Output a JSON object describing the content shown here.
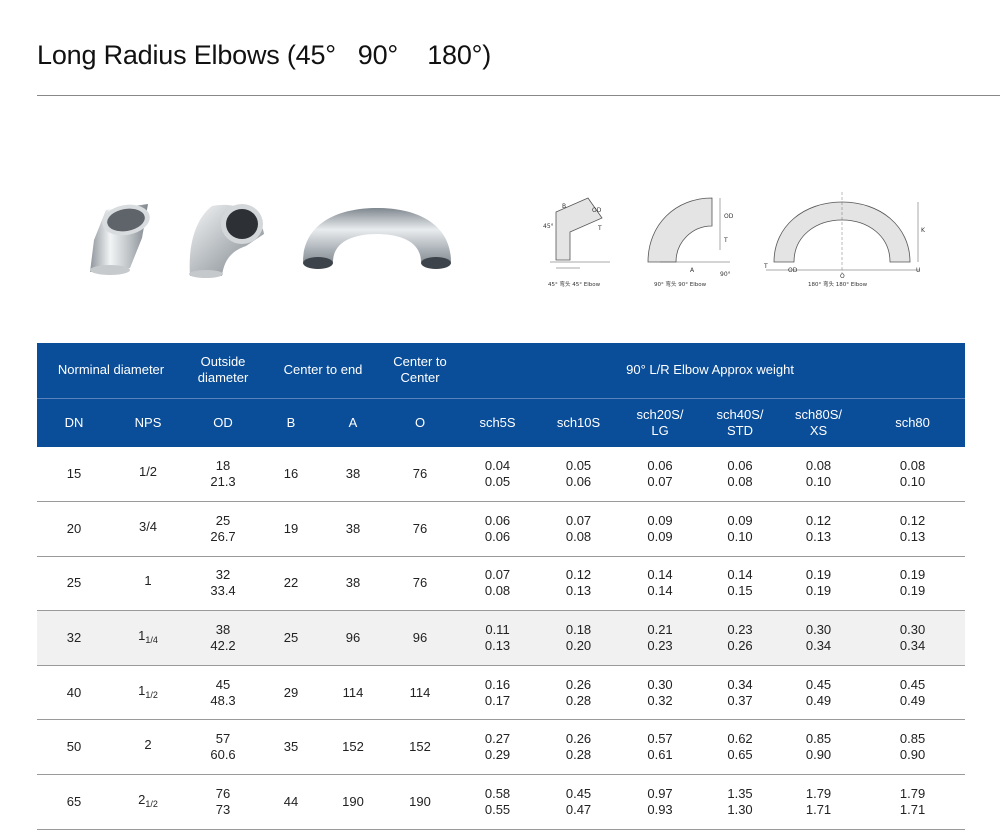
{
  "page": {
    "title": "Long Radius Elbows (45°   90°    180°)"
  },
  "images": {
    "photos": [
      "elbow-45-photo",
      "elbow-90-photo",
      "elbow-180-photo"
    ],
    "drawings": [
      {
        "caption": "45° 弯头 45° Elbow",
        "labels": {
          "angle": "45°",
          "od": "OD",
          "t": "T",
          "b": "B"
        }
      },
      {
        "caption": "90° 弯头 90° Elbow",
        "labels": {
          "od": "OD",
          "t": "T",
          "a": "A",
          "angle": "90°"
        }
      },
      {
        "caption": "180° 弯头 180° Elbow",
        "labels": {
          "k": "K",
          "u": "U",
          "t": "T",
          "od": "OD",
          "o": "O"
        }
      }
    ]
  },
  "table": {
    "group_headers": {
      "nominal": "Norminal diameter",
      "outside_line1": "Outside",
      "outside_line2": "diameter",
      "center_end": "Center to end",
      "center_center_line1": "Center to",
      "center_center_line2": "Center",
      "weight": "90° L/R Elbow Approx weight"
    },
    "sub_headers": {
      "dn": "DN",
      "nps": "NPS",
      "od": "OD",
      "b": "B",
      "a": "A",
      "o": "O",
      "sch5s": "sch5S",
      "sch10s": "sch10S",
      "sch20s_line1": "sch20S/",
      "sch20s_line2": "LG",
      "sch40s_line1": "sch40S/",
      "sch40s_line2": "STD",
      "sch80s_line1": "sch80S/",
      "sch80s_line2": "XS",
      "sch80": "sch80"
    },
    "rows": [
      {
        "dn": "15",
        "nps": "1/2",
        "nps_sub": "",
        "od1": "18",
        "od2": "21.3",
        "b": "16",
        "a": "38",
        "o": "76",
        "sch5s": [
          "0.04",
          "0.05"
        ],
        "sch10s": [
          "0.05",
          "0.06"
        ],
        "sch20s": [
          "0.06",
          "0.07"
        ],
        "sch40s": [
          "0.06",
          "0.08"
        ],
        "sch80s": [
          "0.08",
          "0.10"
        ],
        "sch80": [
          "0.08",
          "0.10"
        ]
      },
      {
        "dn": "20",
        "nps": "3/4",
        "nps_sub": "",
        "od1": "25",
        "od2": "26.7",
        "b": "19",
        "a": "38",
        "o": "76",
        "sch5s": [
          "0.06",
          "0.06"
        ],
        "sch10s": [
          "0.07",
          "0.08"
        ],
        "sch20s": [
          "0.09",
          "0.09"
        ],
        "sch40s": [
          "0.09",
          "0.10"
        ],
        "sch80s": [
          "0.12",
          "0.13"
        ],
        "sch80": [
          "0.12",
          "0.13"
        ]
      },
      {
        "dn": "25",
        "nps": "1",
        "nps_sub": "",
        "od1": "32",
        "od2": "33.4",
        "b": "22",
        "a": "38",
        "o": "76",
        "sch5s": [
          "0.07",
          "0.08"
        ],
        "sch10s": [
          "0.12",
          "0.13"
        ],
        "sch20s": [
          "0.14",
          "0.14"
        ],
        "sch40s": [
          "0.14",
          "0.15"
        ],
        "sch80s": [
          "0.19",
          "0.19"
        ],
        "sch80": [
          "0.19",
          "0.19"
        ]
      },
      {
        "dn": "32",
        "nps": "1",
        "nps_sub": "1/4",
        "od1": "38",
        "od2": "42.2",
        "b": "25",
        "a": "96",
        "o": "96",
        "sch5s": [
          "0.11",
          "0.13"
        ],
        "sch10s": [
          "0.18",
          "0.20"
        ],
        "sch20s": [
          "0.21",
          "0.23"
        ],
        "sch40s": [
          "0.23",
          "0.26"
        ],
        "sch80s": [
          "0.30",
          "0.34"
        ],
        "sch80": [
          "0.30",
          "0.34"
        ]
      },
      {
        "dn": "40",
        "nps": "1",
        "nps_sub": "1/2",
        "od1": "45",
        "od2": "48.3",
        "b": "29",
        "a": "114",
        "o": "114",
        "sch5s": [
          "0.16",
          "0.17"
        ],
        "sch10s": [
          "0.26",
          "0.28"
        ],
        "sch20s": [
          "0.30",
          "0.32"
        ],
        "sch40s": [
          "0.34",
          "0.37"
        ],
        "sch80s": [
          "0.45",
          "0.49"
        ],
        "sch80": [
          "0.45",
          "0.49"
        ]
      },
      {
        "dn": "50",
        "nps": "2",
        "nps_sub": "",
        "od1": "57",
        "od2": "60.6",
        "b": "35",
        "a": "152",
        "o": "152",
        "sch5s": [
          "0.27",
          "0.29"
        ],
        "sch10s": [
          "0.26",
          "0.28"
        ],
        "sch20s": [
          "0.57",
          "0.61"
        ],
        "sch40s": [
          "0.62",
          "0.65"
        ],
        "sch80s": [
          "0.85",
          "0.90"
        ],
        "sch80": [
          "0.85",
          "0.90"
        ]
      },
      {
        "dn": "65",
        "nps": "2",
        "nps_sub": "1/2",
        "od1": "76",
        "od2": "73",
        "b": "44",
        "a": "190",
        "o": "190",
        "sch5s": [
          "0.58",
          "0.55"
        ],
        "sch10s": [
          "0.45",
          "0.47"
        ],
        "sch20s": [
          "0.97",
          "0.93"
        ],
        "sch40s": [
          "1.35",
          "1.30"
        ],
        "sch80s": [
          "1.79",
          "1.71"
        ],
        "sch80": [
          "1.79",
          "1.71"
        ]
      }
    ]
  }
}
